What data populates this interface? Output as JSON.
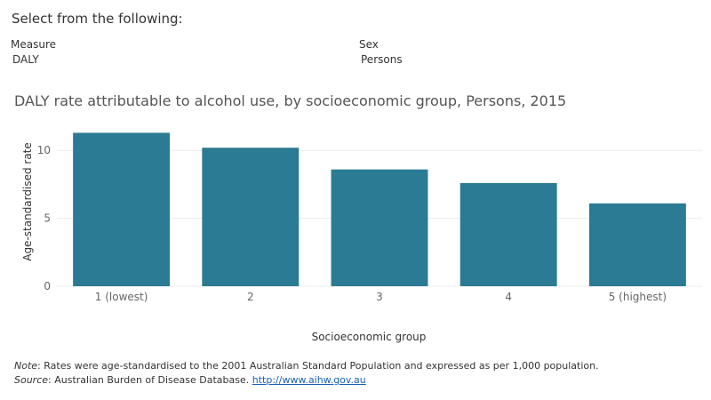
{
  "header": {
    "select_prompt": "Select from the following:"
  },
  "filters": {
    "measure": {
      "label": "Measure",
      "value": "DALY"
    },
    "sex": {
      "label": "Sex",
      "value": "Persons"
    }
  },
  "footnote": {
    "note_label": "Note",
    "note_text": ": Rates were age-standardised to the 2001 Australian Standard Population and expressed as per 1,000 population.",
    "source_label": "Source",
    "source_text": ": Australian Burden of Disease Database. ",
    "source_link": "http://www.aihw.gov.au"
  },
  "colors": {
    "bar": "#2a7b93",
    "grid": "#ececec",
    "axis_text": "#666666"
  },
  "chart_data": {
    "type": "bar",
    "title": "DALY rate attributable to alcohol use, by socioeconomic group, Persons, 2015",
    "xlabel": "Socioeconomic group",
    "ylabel": "Age-standardised rate",
    "categories": [
      "1 (lowest)",
      "2",
      "3",
      "4",
      "5 (highest)"
    ],
    "values": [
      11.3,
      10.2,
      8.6,
      7.6,
      6.1
    ],
    "ylim": [
      0,
      12.7
    ],
    "yticks": [
      0,
      5,
      10
    ],
    "grid": true,
    "legend": "none"
  }
}
